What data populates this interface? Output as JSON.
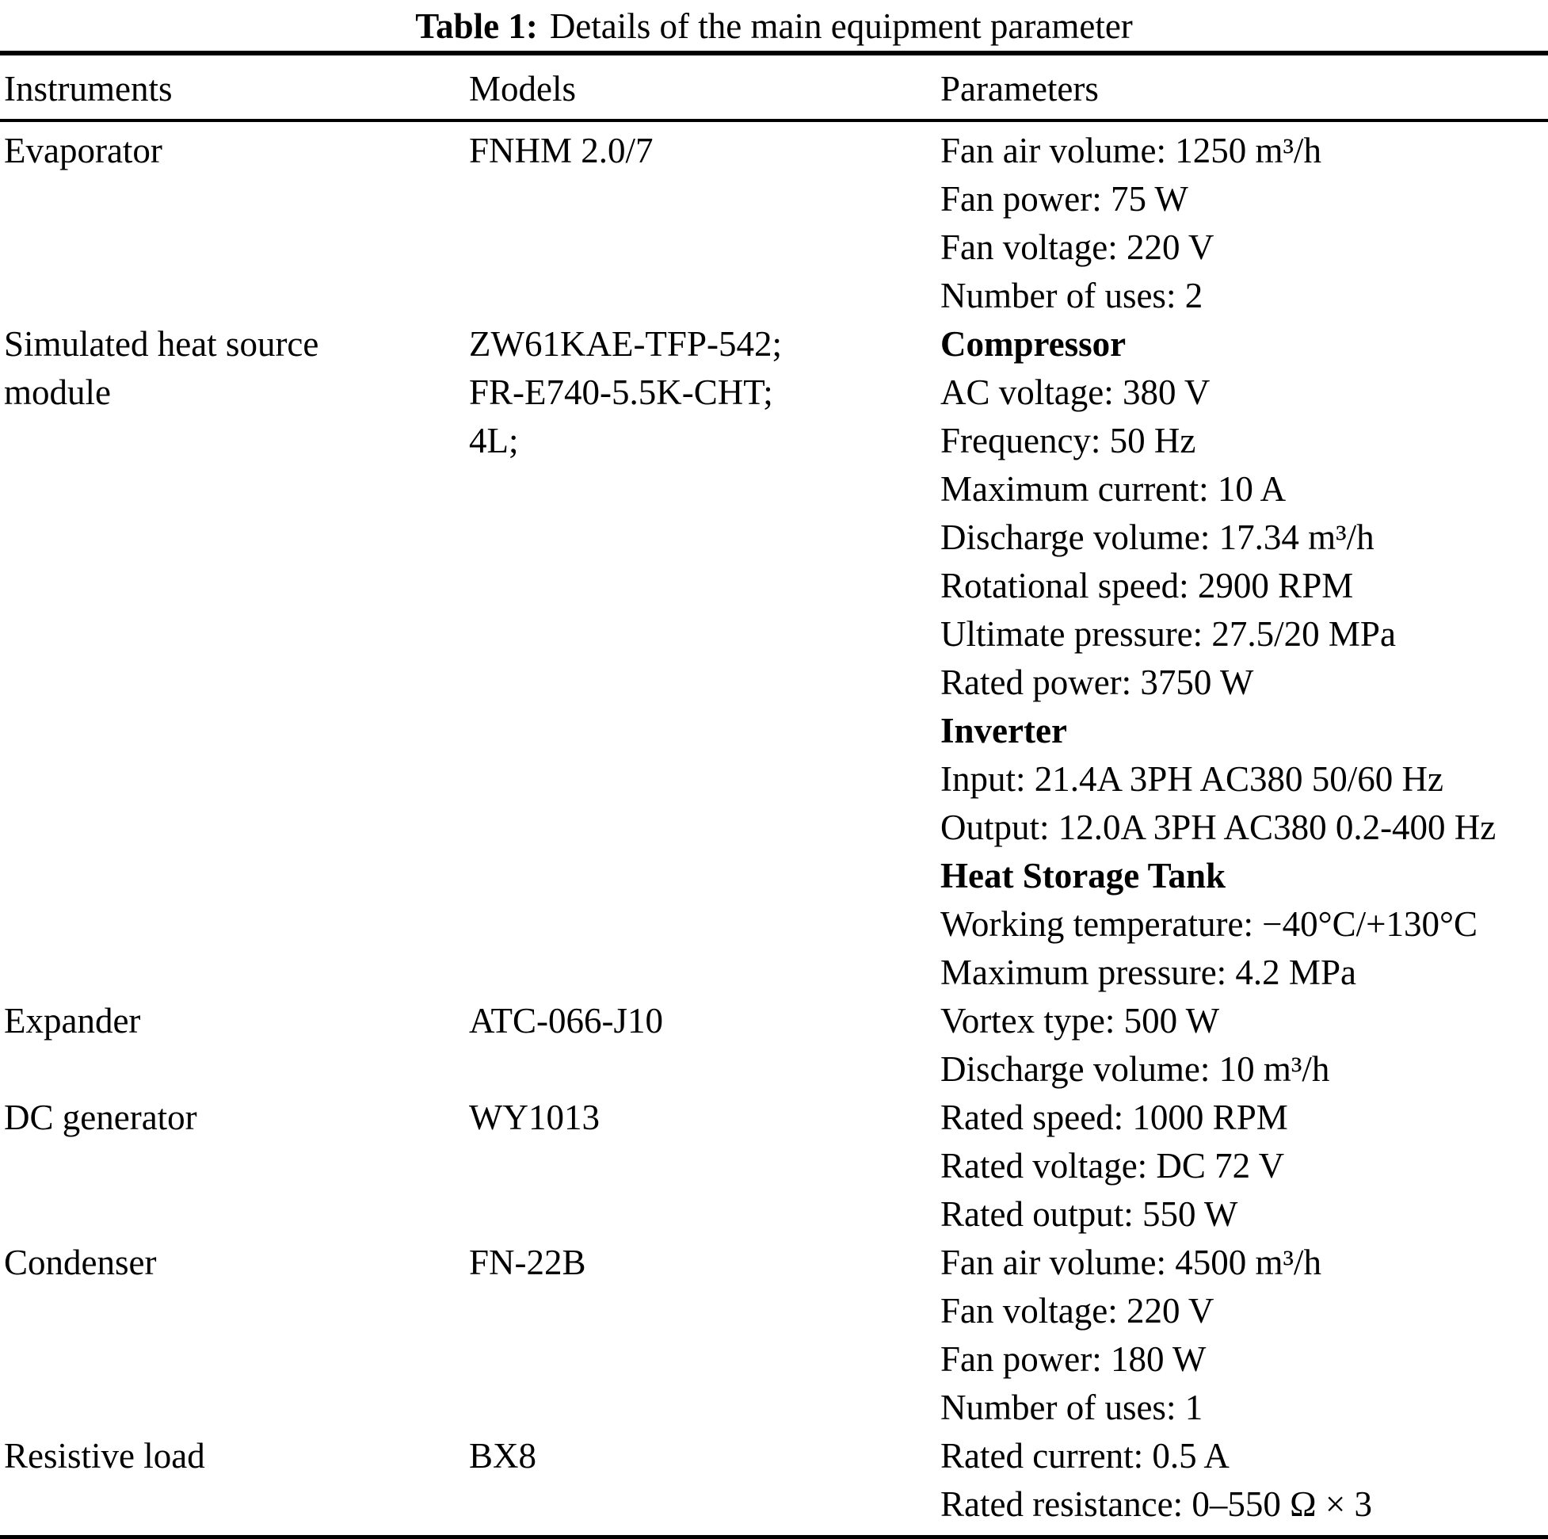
{
  "title": {
    "label": "Table 1:",
    "text": "Details of the main equipment parameter"
  },
  "columns": [
    "Instruments",
    "Models",
    "Parameters"
  ],
  "rows": [
    {
      "instrument": [
        "Evaporator"
      ],
      "models": [
        "FNHM 2.0/7"
      ],
      "parameters": [
        {
          "text": "Fan air volume: 1250 m³/h"
        },
        {
          "text": "Fan power: 75 W"
        },
        {
          "text": "Fan voltage: 220 V"
        },
        {
          "text": "Number of uses: 2"
        }
      ]
    },
    {
      "instrument": [
        "Simulated heat source",
        "module"
      ],
      "models": [
        "ZW61KAE-TFP-542;",
        "FR-E740-5.5K-CHT;",
        "4L;"
      ],
      "parameters": [
        {
          "text": "Compressor",
          "bold": true
        },
        {
          "text": "AC voltage: 380 V"
        },
        {
          "text": "Frequency: 50 Hz"
        },
        {
          "text": "Maximum current: 10 A"
        },
        {
          "text": "Discharge volume: 17.34 m³/h"
        },
        {
          "text": "Rotational speed: 2900 RPM"
        },
        {
          "text": "Ultimate pressure: 27.5/20 MPa"
        },
        {
          "text": "Rated power: 3750 W"
        },
        {
          "text": "Inverter",
          "bold": true
        },
        {
          "text": "Input: 21.4A 3PH AC380 50/60 Hz"
        },
        {
          "text": "Output: 12.0A 3PH AC380 0.2-400 Hz"
        },
        {
          "text": "Heat Storage Tank",
          "bold": true
        },
        {
          "text": "Working temperature: −40°C/+130°C"
        },
        {
          "text": "Maximum pressure: 4.2 MPa"
        }
      ]
    },
    {
      "instrument": [
        "Expander"
      ],
      "models": [
        "ATC-066-J10"
      ],
      "parameters": [
        {
          "text": "Vortex type: 500 W"
        },
        {
          "text": "Discharge volume: 10 m³/h"
        }
      ]
    },
    {
      "instrument": [
        "DC generator"
      ],
      "models": [
        "WY1013"
      ],
      "parameters": [
        {
          "text": "Rated speed: 1000 RPM"
        },
        {
          "text": "Rated voltage: DC 72 V"
        },
        {
          "text": "Rated output: 550 W"
        }
      ]
    },
    {
      "instrument": [
        "Condenser"
      ],
      "models": [
        "FN-22B"
      ],
      "parameters": [
        {
          "text": "Fan air volume: 4500 m³/h"
        },
        {
          "text": "Fan voltage: 220 V"
        },
        {
          "text": "Fan power: 180 W"
        },
        {
          "text": "Number of uses: 1"
        }
      ]
    },
    {
      "instrument": [
        "Resistive load"
      ],
      "models": [
        "BX8"
      ],
      "parameters": [
        {
          "text": "Rated current: 0.5 A"
        },
        {
          "text": "Rated resistance: 0–550 Ω × 3"
        }
      ]
    }
  ],
  "colors": {
    "text": "#000000",
    "background": "#ffffff",
    "rule": "#000000"
  }
}
